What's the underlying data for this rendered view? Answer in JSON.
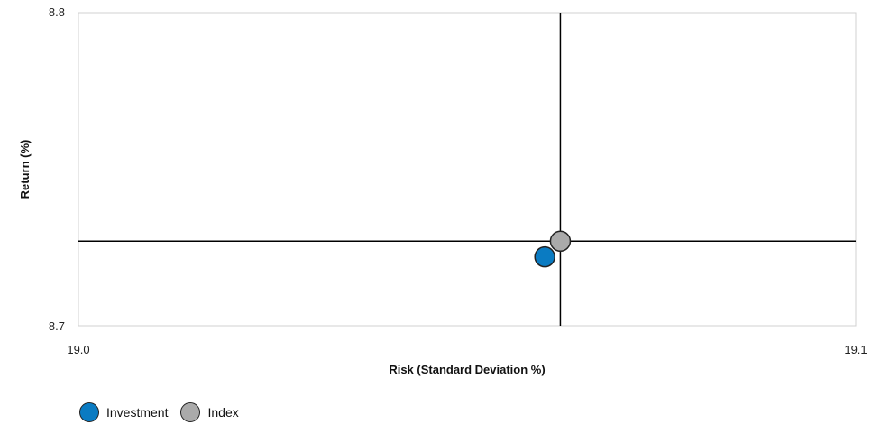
{
  "chart_data": {
    "type": "scatter",
    "xlabel": "Risk (Standard Deviation %)",
    "ylabel": "Return (%)",
    "xlim": [
      19.0,
      19.1
    ],
    "ylim": [
      8.7,
      8.8
    ],
    "x_tick_labels": [
      "19.0",
      "19.1"
    ],
    "y_tick_labels": [
      "8.8",
      "8.7"
    ],
    "grid": false,
    "legend_position": "bottom-left",
    "crosshair": {
      "x": 19.062,
      "y": 8.727
    },
    "series": [
      {
        "name": "Investment",
        "color": "#0a7bc2",
        "points": [
          {
            "x": 19.06,
            "y": 8.722
          }
        ]
      },
      {
        "name": "Index",
        "color": "#aaaaaa",
        "points": [
          {
            "x": 19.062,
            "y": 8.727
          }
        ]
      }
    ]
  }
}
